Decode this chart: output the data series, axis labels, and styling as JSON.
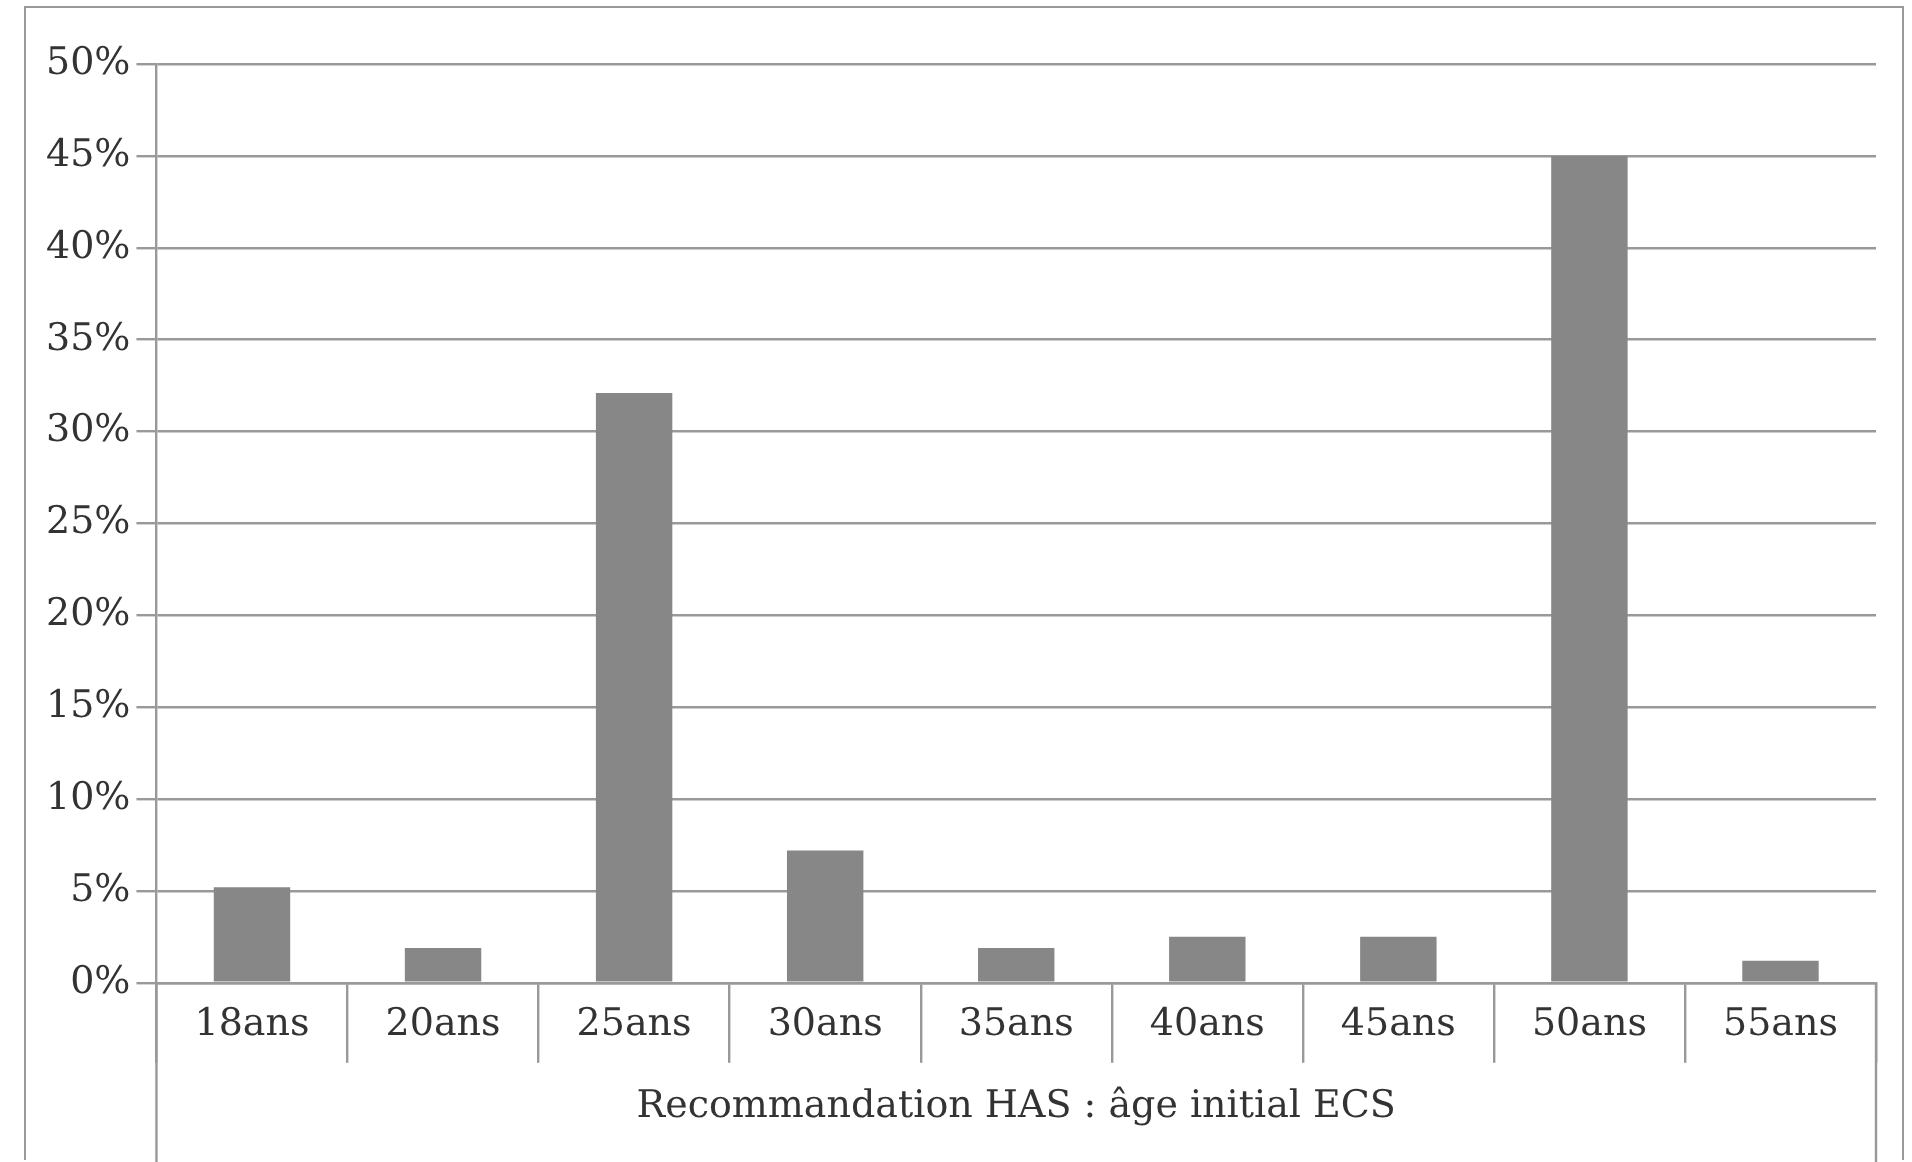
{
  "chart_data": {
    "type": "bar",
    "xlabel": "Recommandation HAS : âge initial ECS",
    "categories": [
      "18ans",
      "20ans",
      "25ans",
      "30ans",
      "35ans",
      "40ans",
      "45ans",
      "50ans",
      "55ans"
    ],
    "values": [
      5.2,
      1.9,
      32.1,
      7.2,
      1.9,
      2.5,
      2.5,
      45,
      1.2
    ],
    "color": "#878787",
    "ylim": [
      0,
      50
    ],
    "yticks": [
      {
        "value": 0,
        "label": "0%"
      },
      {
        "value": 5,
        "label": "5%"
      },
      {
        "value": 10,
        "label": "10%"
      },
      {
        "value": 15,
        "label": "15%"
      },
      {
        "value": 20,
        "label": "20%"
      },
      {
        "value": 25,
        "label": "25%"
      },
      {
        "value": 30,
        "label": "30%"
      },
      {
        "value": 35,
        "label": "35%"
      },
      {
        "value": 40,
        "label": "40%"
      },
      {
        "value": 45,
        "label": "45%"
      },
      {
        "value": 50,
        "label": "50%"
      }
    ],
    "grid": "y"
  }
}
